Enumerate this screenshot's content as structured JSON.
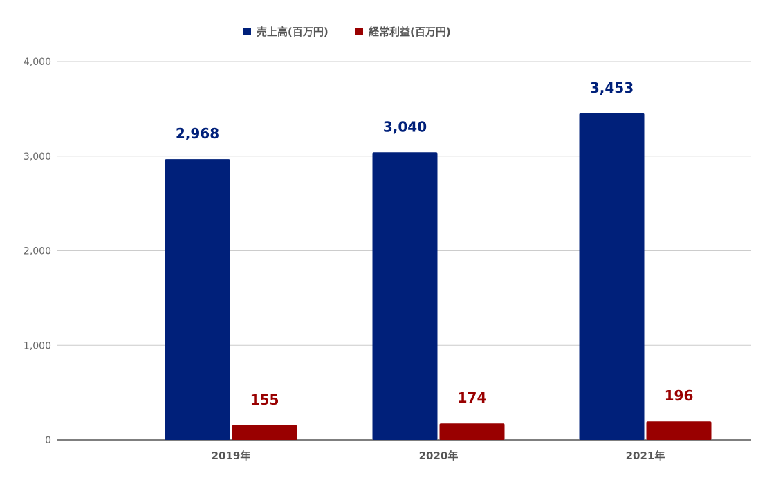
{
  "chart_data": {
    "type": "bar",
    "categories": [
      "2019年",
      "2020年",
      "2021年"
    ],
    "series": [
      {
        "name": "売上高(百万円)",
        "values": [
          2968,
          3040,
          3453
        ],
        "color": "#00207a",
        "labels": [
          "2,968",
          "3,040",
          "3,453"
        ]
      },
      {
        "name": "経常利益(百万円)",
        "values": [
          155,
          174,
          196
        ],
        "color": "#990000",
        "labels": [
          "155",
          "174",
          "196"
        ]
      }
    ],
    "yticks": [
      0,
      1000,
      2000,
      3000,
      4000
    ],
    "ytick_labels": [
      "0",
      "1,000",
      "2,000",
      "3,000",
      "4,000"
    ],
    "ylim": [
      0,
      4000
    ],
    "title": "",
    "xlabel": "",
    "ylabel": "",
    "grid": true,
    "legend_position": "top-center"
  }
}
